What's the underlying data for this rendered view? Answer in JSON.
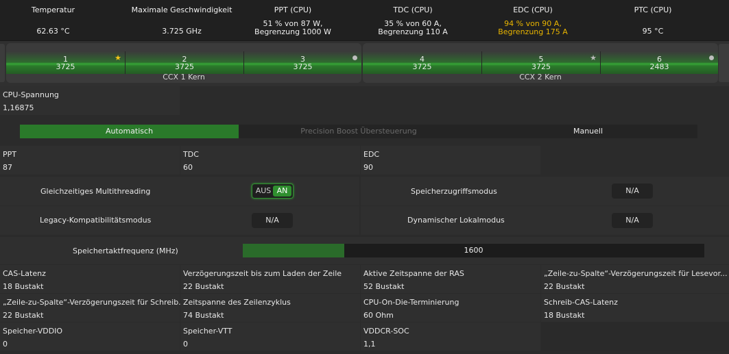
{
  "header": {
    "temp": {
      "title": "Temperatur",
      "value": "62.63 °C"
    },
    "maxspeed": {
      "title": "Maximale Geschwindigkeit",
      "value": "3.725  GHz"
    },
    "ppt": {
      "title": "PPT (CPU)",
      "line1": "51 % von 87 W,",
      "line2": "Begrenzung 1000 W"
    },
    "tdc": {
      "title": "TDC (CPU)",
      "line1": "35 % von 60 A,",
      "line2": "Begrenzung 110 A"
    },
    "edc": {
      "title": "EDC (CPU)",
      "line1": "94 % von 90 A,",
      "line2": "Begrenzung 175 A",
      "warn_color": "#e8b400"
    },
    "ptc": {
      "title": "PTC (CPU)",
      "value": "95 °C"
    }
  },
  "ccx": [
    {
      "label": "CCX 1 Kern",
      "cores": [
        {
          "num": "1",
          "freq": "3725",
          "marker": "gold-star-icon"
        },
        {
          "num": "2",
          "freq": "3725",
          "marker": ""
        },
        {
          "num": "3",
          "freq": "3725",
          "marker": "dot-icon"
        }
      ]
    },
    {
      "label": "CCX 2 Kern",
      "cores": [
        {
          "num": "4",
          "freq": "3725",
          "marker": ""
        },
        {
          "num": "5",
          "freq": "3725",
          "marker": "silver-star-icon"
        },
        {
          "num": "6",
          "freq": "2483",
          "marker": "dot-icon"
        }
      ]
    }
  ],
  "cpu_voltage": {
    "label": "CPU-Spannung",
    "value": "1,16875"
  },
  "modes": {
    "auto": "Automatisch",
    "pbo": "Precision Boost Übersteuerung",
    "manual": "Manuell",
    "active": "auto"
  },
  "limits": [
    {
      "label": "PPT",
      "value": "87"
    },
    {
      "label": "TDC",
      "value": "60"
    },
    {
      "label": "EDC",
      "value": "90"
    }
  ],
  "options": {
    "smt": {
      "label": "Gleichzeitiges Multithreading",
      "off": "AUS",
      "on": "AN",
      "state": "on"
    },
    "memaccess": {
      "label": "Speicherzugriffsmodus",
      "value": "N/A"
    },
    "legacy": {
      "label": "Legacy-Kompatibilitätsmodus",
      "value": "N/A"
    },
    "local": {
      "label": "Dynamischer Lokalmodus",
      "value": "N/A"
    }
  },
  "memory_clock": {
    "label": "Speichertaktfrequenz (MHz)",
    "value": "1600",
    "fill_fraction": 0.22
  },
  "timings": [
    {
      "label": "CAS-Latenz",
      "value": "18 Bustakt"
    },
    {
      "label": "Verzögerungszeit bis zum Laden der Zeile",
      "value": "22 Bustakt"
    },
    {
      "label": "Aktive Zeitspanne der RAS",
      "value": "52 Bustakt"
    },
    {
      "label": "„Zeile-zu-Spalte“-Verzögerungszeit für Lesevor...",
      "value": "22 Bustakt"
    },
    {
      "label": "„Zeile-zu-Spalte“-Verzögerungszeit für Schreib...",
      "value": "22 Bustakt"
    },
    {
      "label": "Zeitspanne des Zeilenzyklus",
      "value": "74 Bustakt"
    },
    {
      "label": "CPU-On-Die-Terminierung",
      "value": "60 Ohm"
    },
    {
      "label": "Schreib-CAS-Latenz",
      "value": "18 Bustakt"
    },
    {
      "label": "Speicher-VDDIO",
      "value": "0"
    },
    {
      "label": "Speicher-VTT",
      "value": "0"
    },
    {
      "label": "VDDCR-SOC",
      "value": "1,1"
    }
  ],
  "colors": {
    "accent_green": "#2f8f2f",
    "warning": "#e8b400",
    "background": "#2b2b2b"
  }
}
